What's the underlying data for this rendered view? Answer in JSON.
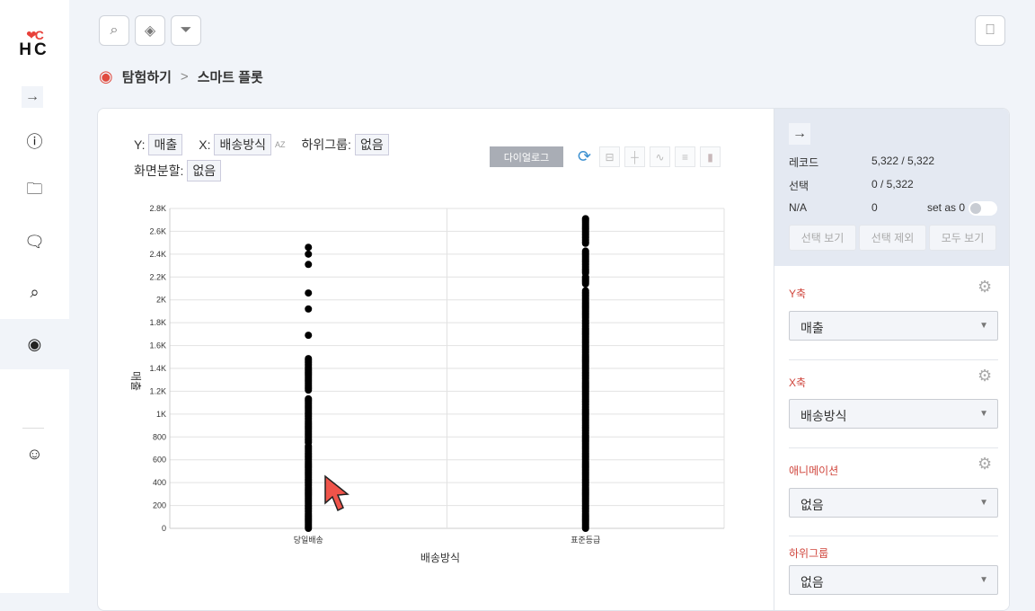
{
  "sidebar": {
    "logo_mark": "❤C",
    "logo_text": "HC",
    "items": [
      {
        "icon": "info-icon",
        "glyph": "ⓘ"
      },
      {
        "icon": "folder-add-icon",
        "glyph": "🗀"
      },
      {
        "icon": "comment-icon",
        "glyph": "🗨"
      },
      {
        "icon": "chart-search-icon",
        "glyph": "⌕"
      },
      {
        "icon": "eye-icon",
        "glyph": "◉",
        "active": true
      },
      {
        "icon": "user-circle-icon",
        "glyph": "☺"
      }
    ],
    "expand_glyph": "→"
  },
  "toolbar": {
    "search": "⌕",
    "paint": "◈",
    "filter": "⏷",
    "bookmark": "⎕"
  },
  "breadcrumb": {
    "root": "탐험하기",
    "separator": ">",
    "current": "스마트 플롯"
  },
  "controls": {
    "y_label": "Y:",
    "y_value": "매출",
    "x_label": "X:",
    "x_value": "배송방식",
    "sort_glyph": "AZ",
    "subgroup_label": "하위그룹:",
    "subgroup_value": "없음",
    "split_label": "화면분할:",
    "split_value": "없음",
    "dialog_button": "다이얼로그"
  },
  "panel": {
    "records_label": "레코드",
    "records_value": "5,322 / 5,322",
    "selected_label": "선택",
    "selected_value": "0 / 5,322",
    "na_label": "N/A",
    "na_value": "0",
    "set_as_zero": "set as 0",
    "set_as_zero_on": false,
    "buttons": [
      "선택 보기",
      "선택 제외",
      "모두 보기"
    ],
    "sections": [
      {
        "label": "Y축",
        "value": "매출",
        "gear": true
      },
      {
        "label": "X축",
        "value": "배송방식",
        "gear": true
      },
      {
        "label": "애니메이션",
        "value": "없음",
        "gear": true
      },
      {
        "label": "하위그룹",
        "value": "없음",
        "gear": false
      }
    ]
  },
  "colors": {
    "accent": "#d0453c",
    "point": "#000000",
    "panel_bg": "#e4e9f2",
    "page_bg": "#f1f4f9"
  },
  "chart_data": {
    "type": "scatter",
    "xlabel": "배송방식",
    "ylabel": "매출",
    "categories": [
      "당일배송",
      "표준등급"
    ],
    "ylim": [
      0,
      2800
    ],
    "yticks": [
      "0",
      "200",
      "400",
      "600",
      "800",
      "1K",
      "1.2K",
      "1.4K",
      "1.6K",
      "1.8K",
      "2K",
      "2.2K",
      "2.4K",
      "2.6K",
      "2.8K"
    ],
    "grid": true,
    "series": [
      {
        "category": "당일배송",
        "dense_ranges": [
          [
            0,
            725
          ],
          [
            750,
            1140
          ],
          [
            1210,
            1490
          ]
        ],
        "points": [
          1690,
          1920,
          2060,
          2310,
          2400,
          2460
        ]
      },
      {
        "category": "표준등급",
        "dense_ranges": [
          [
            0,
            1830
          ],
          [
            1840,
            2085
          ],
          [
            2140,
            2200
          ],
          [
            2235,
            2430
          ],
          [
            2495,
            2715
          ]
        ],
        "points": []
      }
    ]
  }
}
